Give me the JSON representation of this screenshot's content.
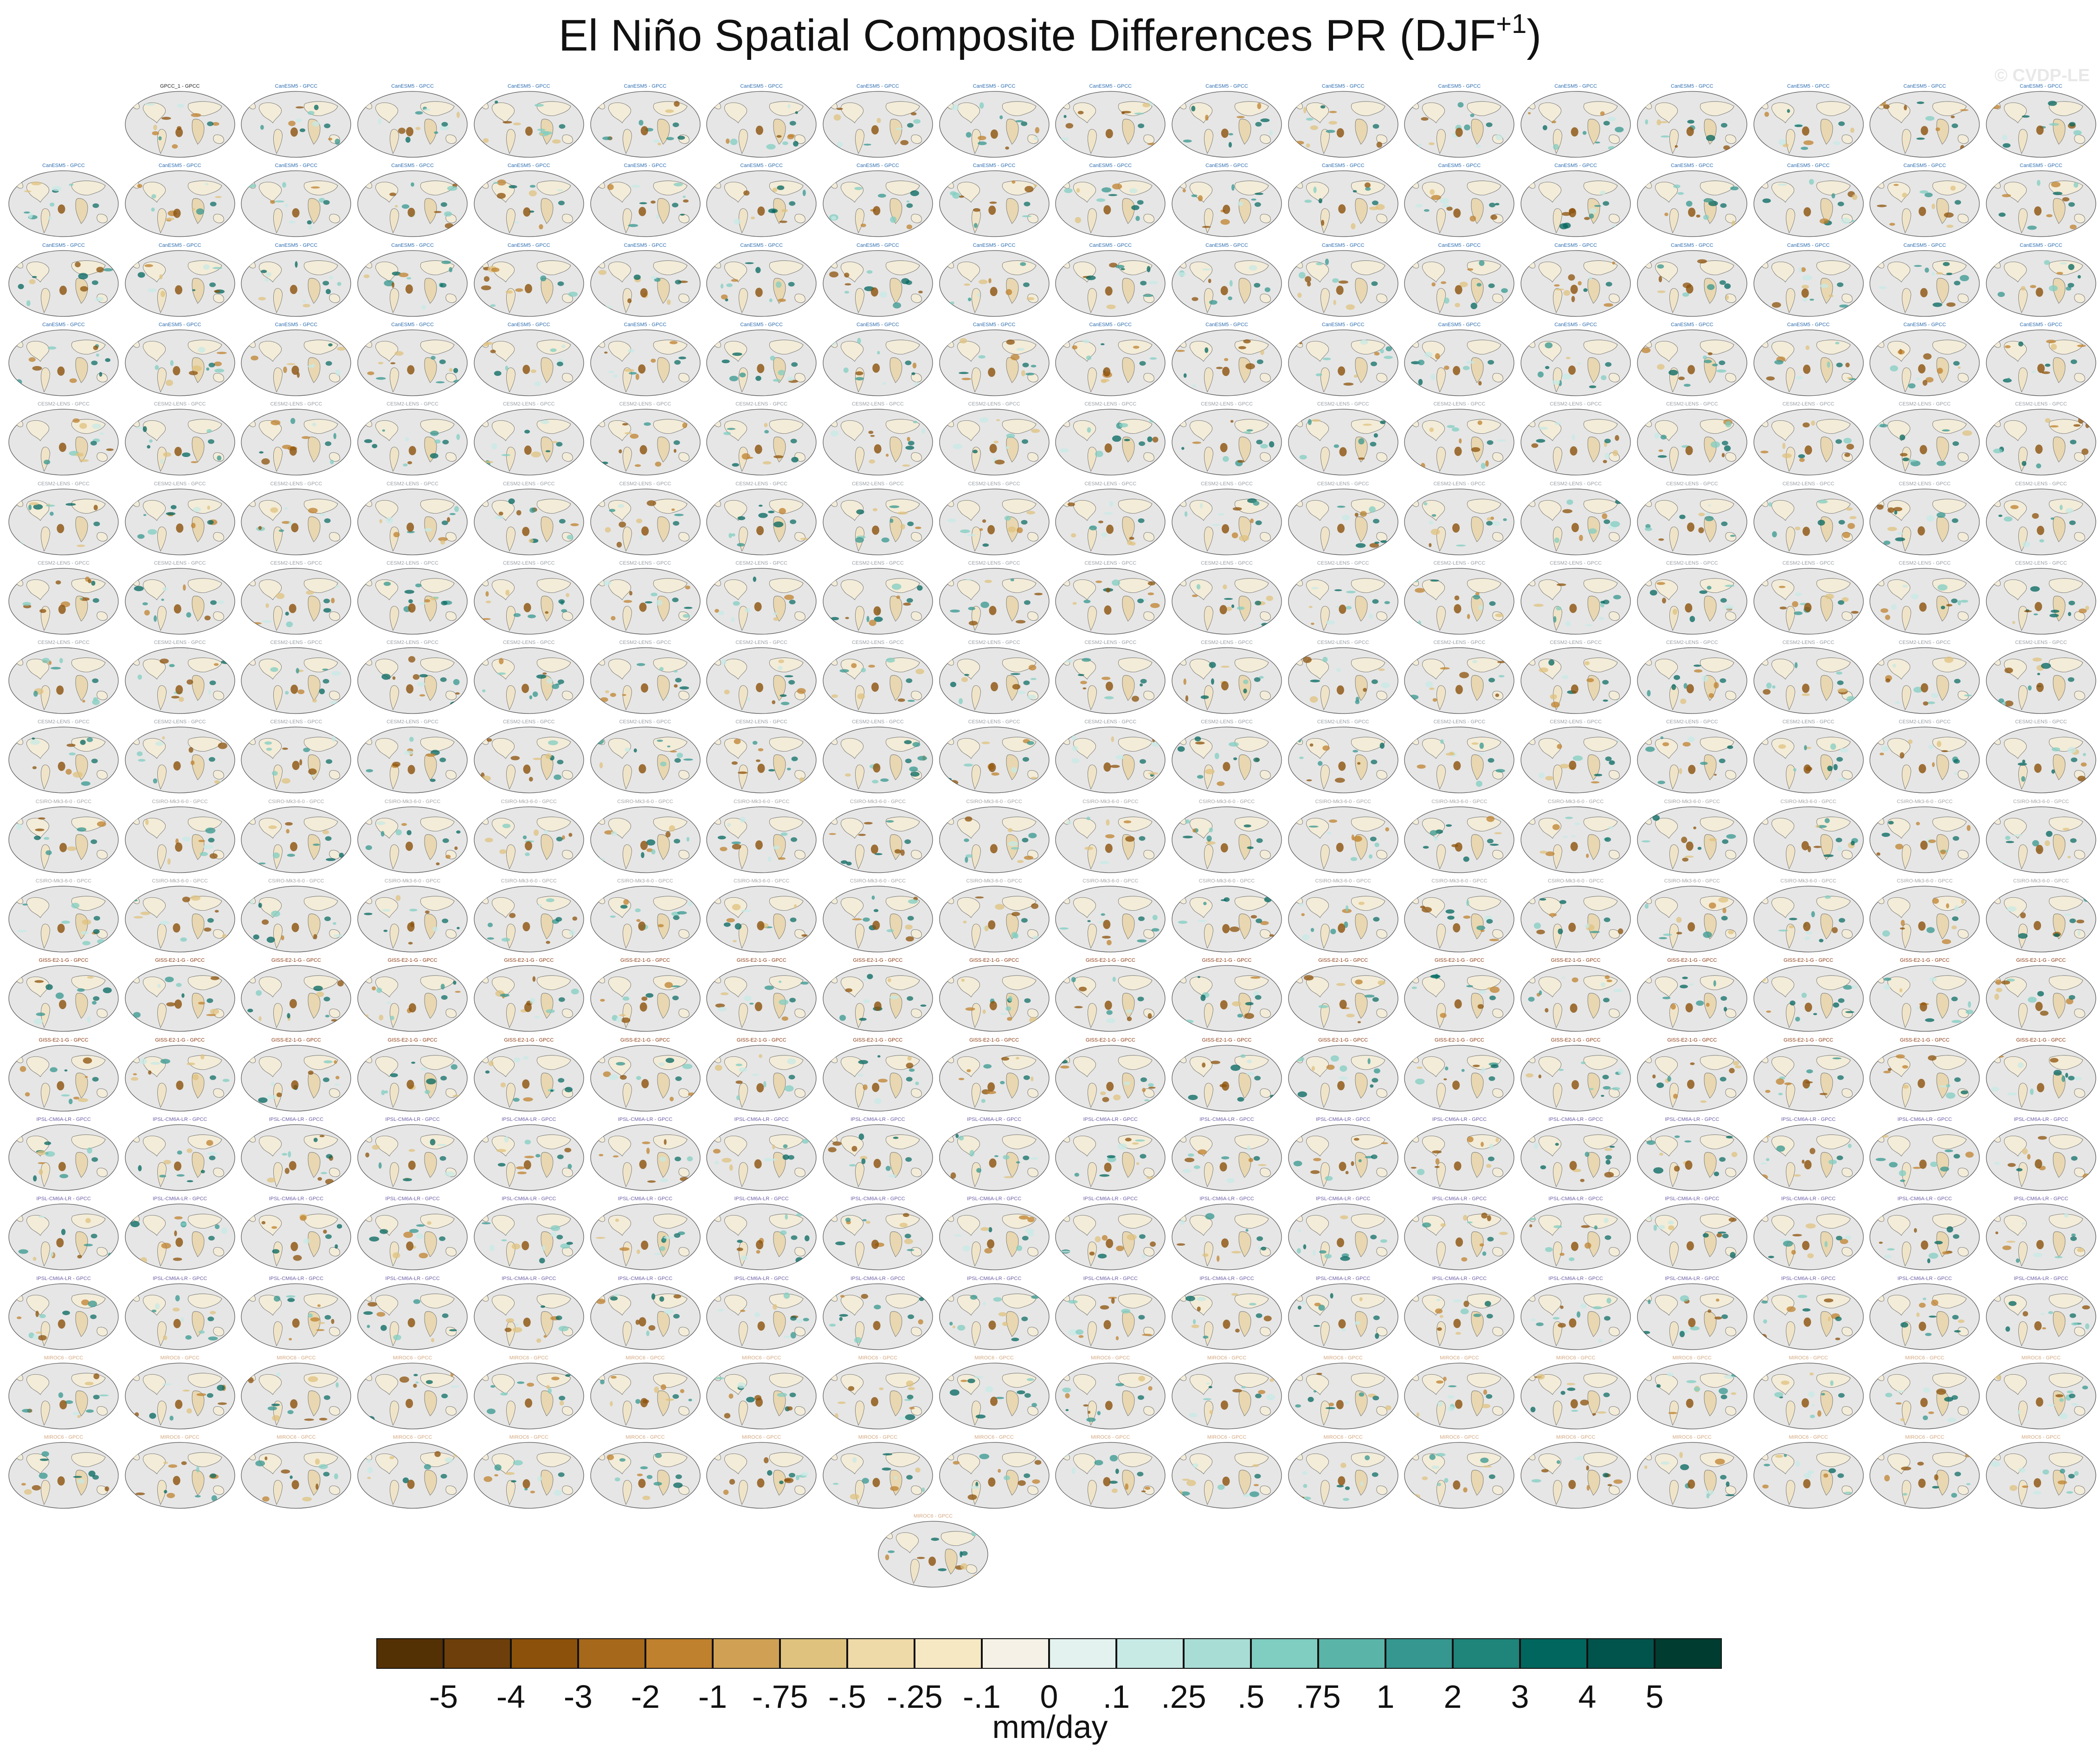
{
  "title_main": "El Niño Spatial Composite Differences PR (DJF",
  "title_sup": "+1",
  "title_close": ")",
  "watermark": "© CVDP-LE",
  "colorbar": {
    "units": "mm/day",
    "colors": [
      "#543005",
      "#6e3f0b",
      "#8c510a",
      "#a6681b",
      "#bf812d",
      "#d0a154",
      "#dfc27d",
      "#eed9a8",
      "#f6e8c3",
      "#f5f1e6",
      "#e3f2ef",
      "#c7eae5",
      "#a8ddd5",
      "#80cdc1",
      "#5ab4a8",
      "#35978f",
      "#1f8479",
      "#01665e",
      "#01544c",
      "#003c30"
    ],
    "labels": [
      "-5",
      "-4",
      "-3",
      "-2",
      "-1",
      "-.75",
      "-.5",
      "-.25",
      "-.1",
      "0",
      ".1",
      ".25",
      ".5",
      ".75",
      "1",
      "2",
      "3",
      "4",
      "5"
    ]
  },
  "panels": {
    "label_colors": {
      "obs": "#222222",
      "canesm": "#2c6db0",
      "cesm": "#9aa0a6",
      "csiro": "#a7a7a7",
      "giss": "#8b3a10",
      "ipsl": "#7060a8",
      "miroc": "#d4a880"
    },
    "obs_label": "GPCC_1 - GPCC",
    "row_labels": [
      "CanESM5 - GPCC",
      "CanESM5 - GPCC",
      "CanESM5 - GPCC",
      "CanESM5 - GPCC",
      "CESM2-LENS - GPCC",
      "CESM2-LENS - GPCC",
      "CESM2-LENS - GPCC",
      "CESM2-LENS - GPCC",
      "CESM2-LENS - GPCC",
      "CSIRO-Mk3-6-0 - GPCC",
      "CSIRO-Mk3-6-0 - GPCC",
      "GISS-E2-1-G - GPCC",
      "GISS-E2-1-G - GPCC",
      "IPSL-CM6A-LR - GPCC",
      "IPSL-CM6A-LR - GPCC",
      "IPSL-CM6A-LR - GPCC",
      "MIROC6 - GPCC",
      "MIROC6 - GPCC"
    ],
    "last_label": "MIROC6 - GPCC"
  }
}
